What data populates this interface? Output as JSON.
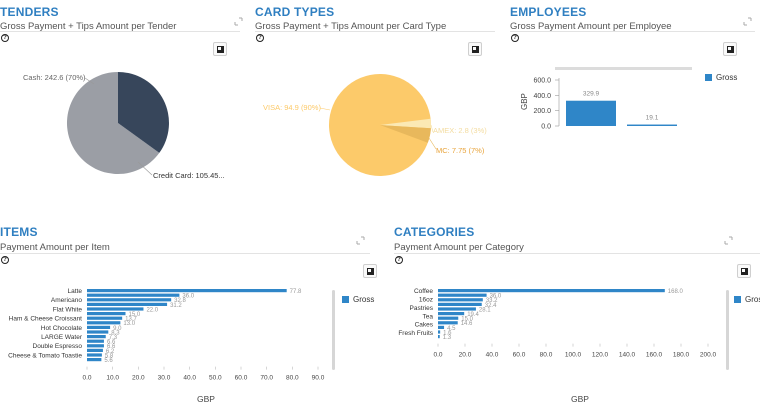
{
  "colors": {
    "accent": "#2f7fc1",
    "bar": "#2f86c8",
    "cash": "#9b9ea5",
    "credit": "#37465b",
    "visa": "#fcca6a",
    "amex": "#fbe9b4",
    "mc": "#e8b85c"
  },
  "icons": {
    "help": "help-circle-icon",
    "expand": "expand-icon",
    "export": "image-export-icon"
  },
  "tenders": {
    "title": "TENDERS",
    "subtitle": "Gross Payment + Tips Amount per Tender",
    "help": "?",
    "chart_data": {
      "type": "pie",
      "slices": [
        {
          "label": "Cash: 242.6 (70%)",
          "value": 242.6,
          "percent": 70
        },
        {
          "label": "Credit Card: 105.45...",
          "value": 105.45,
          "percent": 30
        }
      ]
    }
  },
  "card_types": {
    "title": "CARD TYPES",
    "subtitle": "Gross Payment + Tips Amount per Card Type",
    "help": "?",
    "chart_data": {
      "type": "pie",
      "slices": [
        {
          "label": "VISA: 94.9 (90%)",
          "value": 94.9,
          "percent": 90
        },
        {
          "label": "AMEX: 2.8 (3%)",
          "value": 2.8,
          "percent": 3
        },
        {
          "label": "MC: 7.75 (7%)",
          "value": 7.75,
          "percent": 7
        }
      ]
    }
  },
  "employees": {
    "title": "EMPLOYEES",
    "subtitle": "Gross Payment Amount per Employee",
    "help": "?",
    "legend": "Gross",
    "chart_data": {
      "type": "bar",
      "ylabel": "GBP",
      "yticks": [
        "600.0",
        "400.0",
        "200.0",
        "0.0"
      ],
      "ylim": [
        0,
        600
      ],
      "series": [
        {
          "name": "Gross",
          "values": [
            329.9,
            19.1
          ]
        }
      ],
      "value_labels": [
        "329.9",
        "19.1"
      ]
    }
  },
  "items": {
    "title": "ITEMS",
    "subtitle": "Payment Amount per Item",
    "help": "?",
    "legend": "Gross",
    "chart_data": {
      "type": "bar",
      "orientation": "horizontal",
      "xlabel": "GBP",
      "xlim": [
        0,
        90
      ],
      "xticks": [
        "0.0",
        "10.0",
        "20.0",
        "30.0",
        "40.0",
        "50.0",
        "60.0",
        "70.0",
        "80.0",
        "90.0"
      ],
      "category_labels": [
        "Latte",
        "Americano",
        "Flat White",
        "Ham & Cheese Croissant",
        "Hot Chocolate",
        "LARGE Water",
        "Double Espresso",
        "Cheese & Tomato Toastie"
      ],
      "bars": [
        {
          "value": 77.8,
          "label": "77.8"
        },
        {
          "value": 36.0,
          "label": "36.0"
        },
        {
          "value": 32.8,
          "label": "32.8"
        },
        {
          "value": 31.2,
          "label": "31.2"
        },
        {
          "value": 22.0,
          "label": "22.0"
        },
        {
          "value": 15.0,
          "label": "15.0"
        },
        {
          "value": 13.7,
          "label": "13.7"
        },
        {
          "value": 13.0,
          "label": "13.0"
        },
        {
          "value": 9.0,
          "label": "9.0"
        },
        {
          "value": 8.3,
          "label": "8.3"
        },
        {
          "value": 7.3,
          "label": "7.3"
        },
        {
          "value": 6.6,
          "label": "6.6"
        },
        {
          "value": 6.6,
          "label": "6.6"
        },
        {
          "value": 6.2,
          "label": "6.2"
        },
        {
          "value": 5.8,
          "label": "5.8"
        },
        {
          "value": 5.6,
          "label": "5.6"
        }
      ]
    }
  },
  "categories": {
    "title": "CATEGORIES",
    "subtitle": "Payment Amount per Category",
    "help": "?",
    "legend": "Gross",
    "chart_data": {
      "type": "bar",
      "orientation": "horizontal",
      "xlabel": "GBP",
      "xlim": [
        0,
        200
      ],
      "xticks": [
        "0.0",
        "20.0",
        "40.0",
        "60.0",
        "80.0",
        "100.0",
        "120.0",
        "140.0",
        "160.0",
        "180.0",
        "200.0"
      ],
      "category_labels": [
        "Coffee",
        "16oz",
        "Pastries",
        "Tea",
        "Cakes",
        "Fresh Fruits"
      ],
      "bars": [
        {
          "value": 168.0,
          "label": "168.0"
        },
        {
          "value": 36.0,
          "label": "36.0"
        },
        {
          "value": 33.2,
          "label": "33.2"
        },
        {
          "value": 32.4,
          "label": "32.4"
        },
        {
          "value": 28.1,
          "label": "28.1"
        },
        {
          "value": 19.4,
          "label": "19.4"
        },
        {
          "value": 15.0,
          "label": "15.0"
        },
        {
          "value": 14.6,
          "label": "14.6"
        },
        {
          "value": 4.5,
          "label": "4.5"
        },
        {
          "value": 1.6,
          "label": "1.6"
        },
        {
          "value": 1.3,
          "label": "1.3"
        }
      ]
    }
  }
}
